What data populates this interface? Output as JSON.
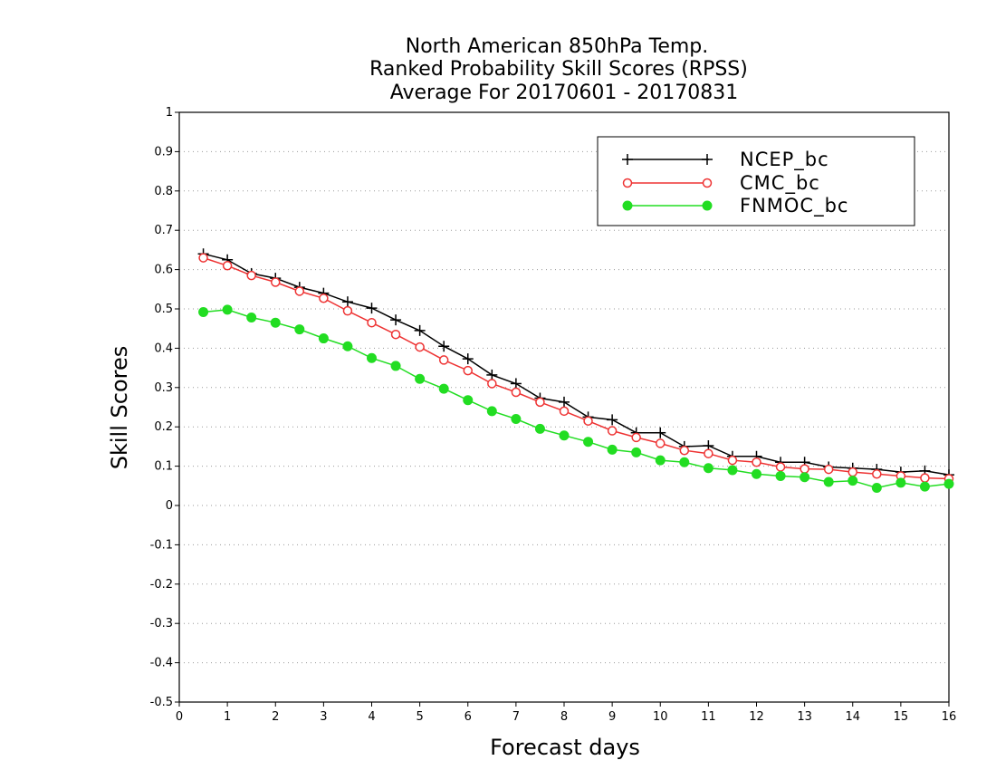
{
  "chart_data": {
    "type": "line",
    "title_lines": [
      "North American 850hPa Temp.",
      "Ranked Probability Skill Scores (RPSS)",
      "Average For 20170601 - 20170831"
    ],
    "xlabel": "Forecast days",
    "ylabel": "Skill Scores",
    "xlim": [
      0,
      16
    ],
    "ylim": [
      -0.5,
      1
    ],
    "xticks": [
      "0",
      "1",
      "2",
      "3",
      "4",
      "5",
      "6",
      "7",
      "8",
      "9",
      "10",
      "11",
      "12",
      "13",
      "14",
      "15",
      "16"
    ],
    "yticks": [
      "1",
      "0.9",
      "0.8",
      "0.7",
      "0.6",
      "0.5",
      "0.4",
      "0.3",
      "0.2",
      "0.1",
      "0",
      "-0.1",
      "-0.2",
      "-0.3",
      "-0.4",
      "-0.5"
    ],
    "grid": "horizontal dotted",
    "legend_position": "top-right",
    "x": [
      0.5,
      1,
      1.5,
      2,
      2.5,
      3,
      3.5,
      4,
      4.5,
      5,
      5.5,
      6,
      6.5,
      7,
      7.5,
      8,
      8.5,
      9,
      9.5,
      10,
      10.5,
      11,
      11.5,
      12,
      12.5,
      13,
      13.5,
      14,
      14.5,
      15,
      15.5,
      16
    ],
    "series": [
      {
        "name": "NCEP_bc",
        "color": "#000000",
        "marker": "plus",
        "values": [
          0.64,
          0.625,
          0.59,
          0.578,
          0.555,
          0.54,
          0.518,
          0.502,
          0.472,
          0.445,
          0.405,
          0.373,
          0.332,
          0.31,
          0.273,
          0.263,
          0.225,
          0.218,
          0.185,
          0.185,
          0.15,
          0.152,
          0.125,
          0.125,
          0.11,
          0.11,
          0.098,
          0.095,
          0.092,
          0.085,
          0.088,
          0.078
        ]
      },
      {
        "name": "CMC_bc",
        "color": "#ee3333",
        "marker": "open-circle",
        "values": [
          0.63,
          0.61,
          0.585,
          0.568,
          0.545,
          0.527,
          0.495,
          0.465,
          0.435,
          0.403,
          0.37,
          0.343,
          0.31,
          0.288,
          0.263,
          0.24,
          0.215,
          0.19,
          0.173,
          0.158,
          0.14,
          0.132,
          0.115,
          0.11,
          0.098,
          0.093,
          0.092,
          0.085,
          0.08,
          0.075,
          0.07,
          0.068
        ]
      },
      {
        "name": "FNMOC_bc",
        "color": "#22dd22",
        "marker": "filled-circle",
        "values": [
          0.492,
          0.498,
          0.478,
          0.465,
          0.448,
          0.425,
          0.405,
          0.375,
          0.355,
          0.322,
          0.297,
          0.268,
          0.24,
          0.22,
          0.195,
          0.178,
          0.162,
          0.142,
          0.135,
          0.115,
          0.11,
          0.095,
          0.09,
          0.08,
          0.075,
          0.072,
          0.06,
          0.063,
          0.045,
          0.058,
          0.048,
          0.055
        ]
      }
    ]
  }
}
